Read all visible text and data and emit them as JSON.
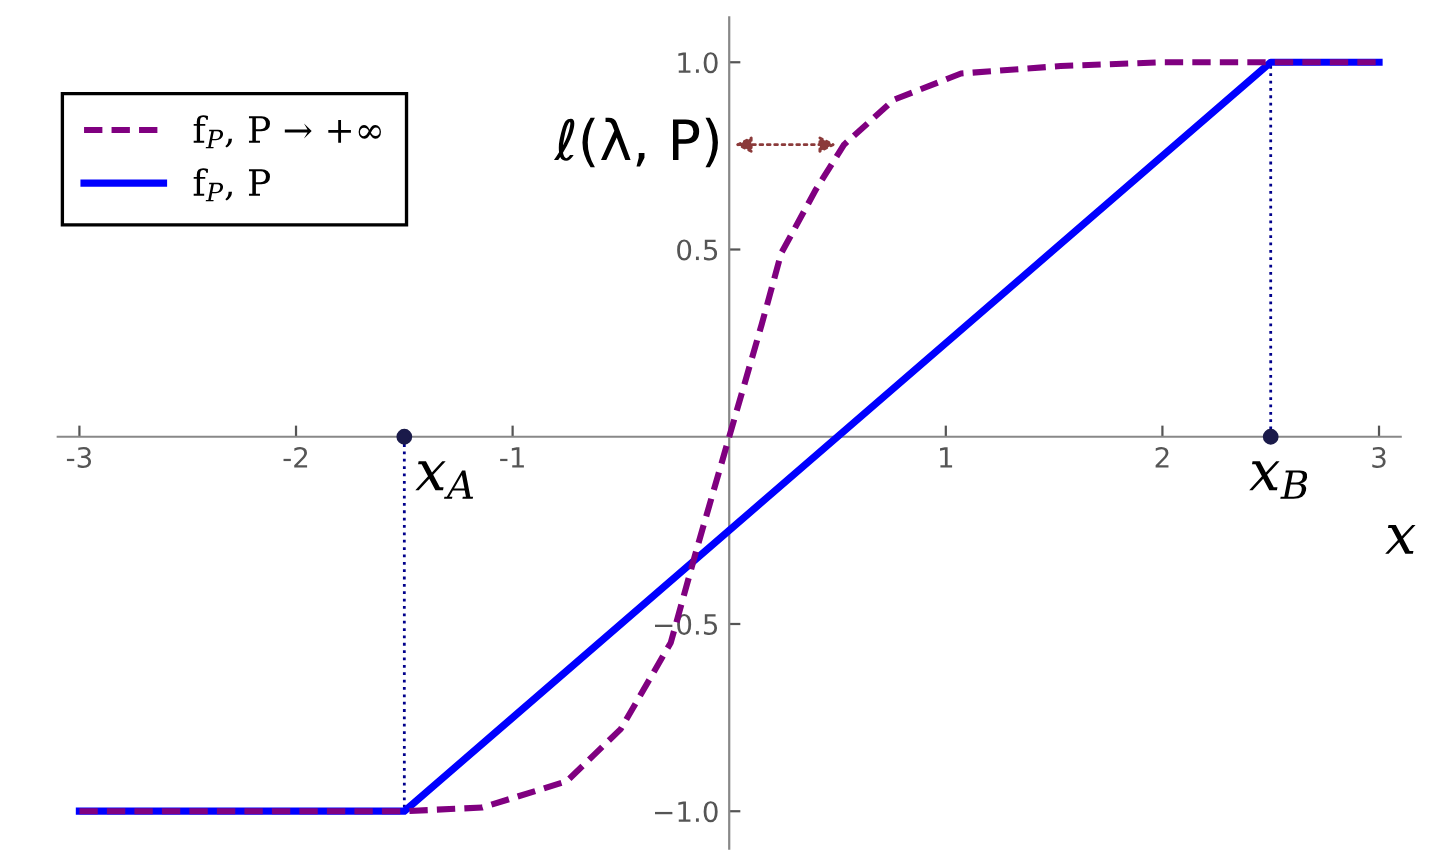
{
  "chart_data": {
    "type": "line",
    "xlabel": "x",
    "xlim": [
      -3.1,
      3.1
    ],
    "ylim": [
      -1.1,
      1.12
    ],
    "xticks": [
      -3,
      -2,
      -1,
      1,
      2,
      3
    ],
    "yticks": [
      {
        "value": -1,
        "label": "−1.0"
      },
      {
        "value": -0.5,
        "label": "−0.5"
      },
      {
        "value": 0.5,
        "label": "0.5"
      },
      {
        "value": 1,
        "label": "1.0"
      }
    ],
    "series": [
      {
        "name": "f$_{P}$, P → +∞",
        "color": "#800080",
        "line_style": "dashed",
        "x": [
          -3,
          -2,
          -1.5,
          -1.14,
          -0.75,
          -0.5,
          -0.27,
          -0.15,
          0,
          0.15,
          0.24,
          0.4,
          0.53,
          0.76,
          1.07,
          1.53,
          2,
          3
        ],
        "values": [
          -1,
          -1,
          -1,
          -0.99,
          -0.92,
          -0.78,
          -0.55,
          -0.3,
          0,
          0.3,
          0.49,
          0.66,
          0.78,
          0.9,
          0.97,
          0.99,
          1,
          1
        ]
      },
      {
        "name": "f$_{P}$, P",
        "color": "#0000ff",
        "line_style": "solid",
        "x": [
          -3,
          -1.5,
          2.5,
          3
        ],
        "values": [
          -1,
          -1,
          1,
          1
        ]
      },
      {
        "type": "scatter",
        "color": "#1a1a4a",
        "marker": "circle",
        "x": [
          -1.5,
          2.5
        ],
        "values": [
          0,
          0
        ]
      }
    ],
    "ref_lines": [
      {
        "axis": "x",
        "value": -1.5,
        "label": "x$_{A}$",
        "color": "#00008b",
        "line_style": "dotted"
      },
      {
        "axis": "x",
        "value": 2.5,
        "label": "x$_{B}$",
        "color": "#00008b",
        "line_style": "dotted"
      }
    ],
    "annotations": [
      {
        "text": "ℓ(λ, P)",
        "x": 0.52,
        "y": 0.78
      }
    ],
    "legend": "top left",
    "grid": false,
    "marker": "none"
  }
}
